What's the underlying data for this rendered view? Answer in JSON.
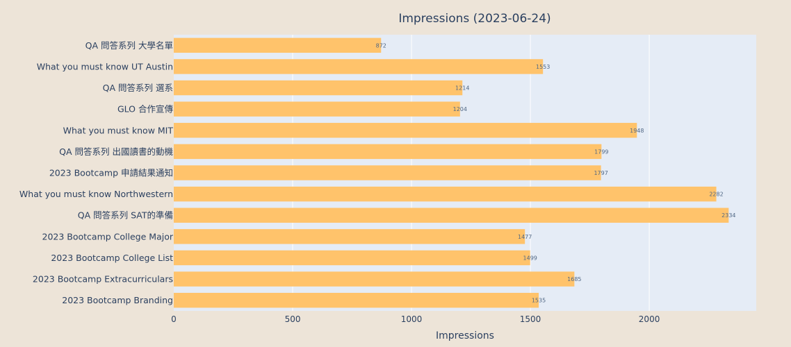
{
  "chart_data": {
    "type": "bar",
    "orientation": "horizontal",
    "title": "Impressions (2023-06-24)",
    "xlabel": "Impressions",
    "ylabel": "",
    "xlim": [
      0,
      2450
    ],
    "xticks": [
      0,
      500,
      1000,
      1500,
      2000
    ],
    "grid": true,
    "legend": "none",
    "colors": {
      "bar": "#FFC36B",
      "plot_bg": "#E5ECF6",
      "paper_bg": "#EDE4D8",
      "grid": "#FFFFFF",
      "text": "#2A3F5F",
      "label": "#506784"
    },
    "categories": [
      "QA 問答系列 大學名單",
      "What you must know UT Austin",
      "QA 問答系列 選系",
      "GLO 合作宣傳",
      "What you must know MIT",
      "QA 問答系列 出國讀書的動機",
      "2023 Bootcamp 申請結果通知",
      "What you must know Northwestern",
      "QA 問答系列 SAT的準備",
      "2023 Bootcamp College Major",
      "2023 Bootcamp College List",
      "2023 Bootcamp Extracurriculars",
      "2023 Bootcamp Branding"
    ],
    "values": [
      872,
      1553,
      1214,
      1204,
      1948,
      1799,
      1797,
      2282,
      2334,
      1477,
      1499,
      1685,
      1535
    ]
  }
}
